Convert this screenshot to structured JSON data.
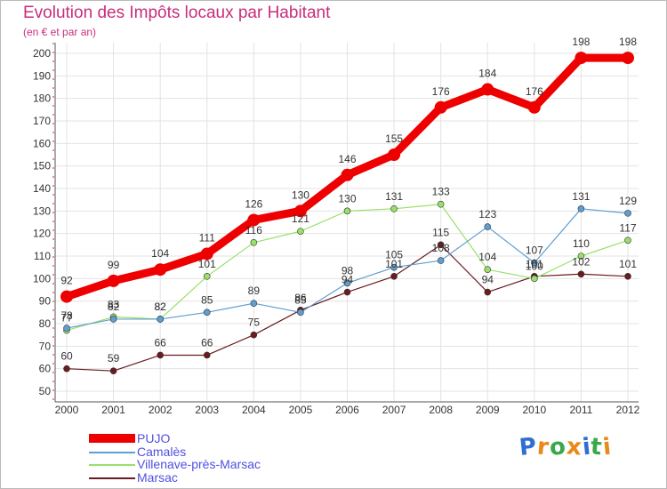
{
  "chart_data": {
    "type": "line",
    "title": "Evolution des Impôts locaux par Habitant",
    "subtitle": "(en € et par an)",
    "x": [
      "2000",
      "2001",
      "2002",
      "2003",
      "2004",
      "2005",
      "2006",
      "2007",
      "2008",
      "2009",
      "2010",
      "2011",
      "2012"
    ],
    "ylim": [
      50,
      200
    ],
    "yticks": [
      50,
      60,
      70,
      80,
      90,
      100,
      110,
      120,
      130,
      140,
      150,
      160,
      170,
      180,
      190,
      200
    ],
    "grid": true,
    "legend_position": "bottom-left",
    "series": [
      {
        "name": "PUJO",
        "color": "#ee0000",
        "values": [
          92,
          99,
          104,
          111,
          126,
          130,
          146,
          155,
          176,
          184,
          176,
          198,
          198
        ]
      },
      {
        "name": "Camalès",
        "color": "#5f9ed1",
        "values": [
          78,
          82,
          82,
          85,
          89,
          85,
          98,
          105,
          108,
          123,
          107,
          131,
          129
        ]
      },
      {
        "name": "Villenave-près-Marsac",
        "color": "#99e06a",
        "values": [
          77,
          83,
          82,
          101,
          116,
          121,
          130,
          131,
          133,
          104,
          100,
          110,
          117
        ]
      },
      {
        "name": "Marsac",
        "color": "#6a1b1f",
        "values": [
          60,
          59,
          66,
          66,
          75,
          86,
          94,
          101,
          115,
          94,
          101,
          102,
          101
        ]
      }
    ]
  },
  "logo": {
    "letters": [
      "P",
      "r",
      "o",
      "x",
      "i",
      "t",
      "i"
    ],
    "colors": [
      "#2f6fd1",
      "#e8891a",
      "#3aa84a",
      "#e8891a",
      "#2f6fd1",
      "#3aa84a",
      "#e8891a"
    ]
  }
}
